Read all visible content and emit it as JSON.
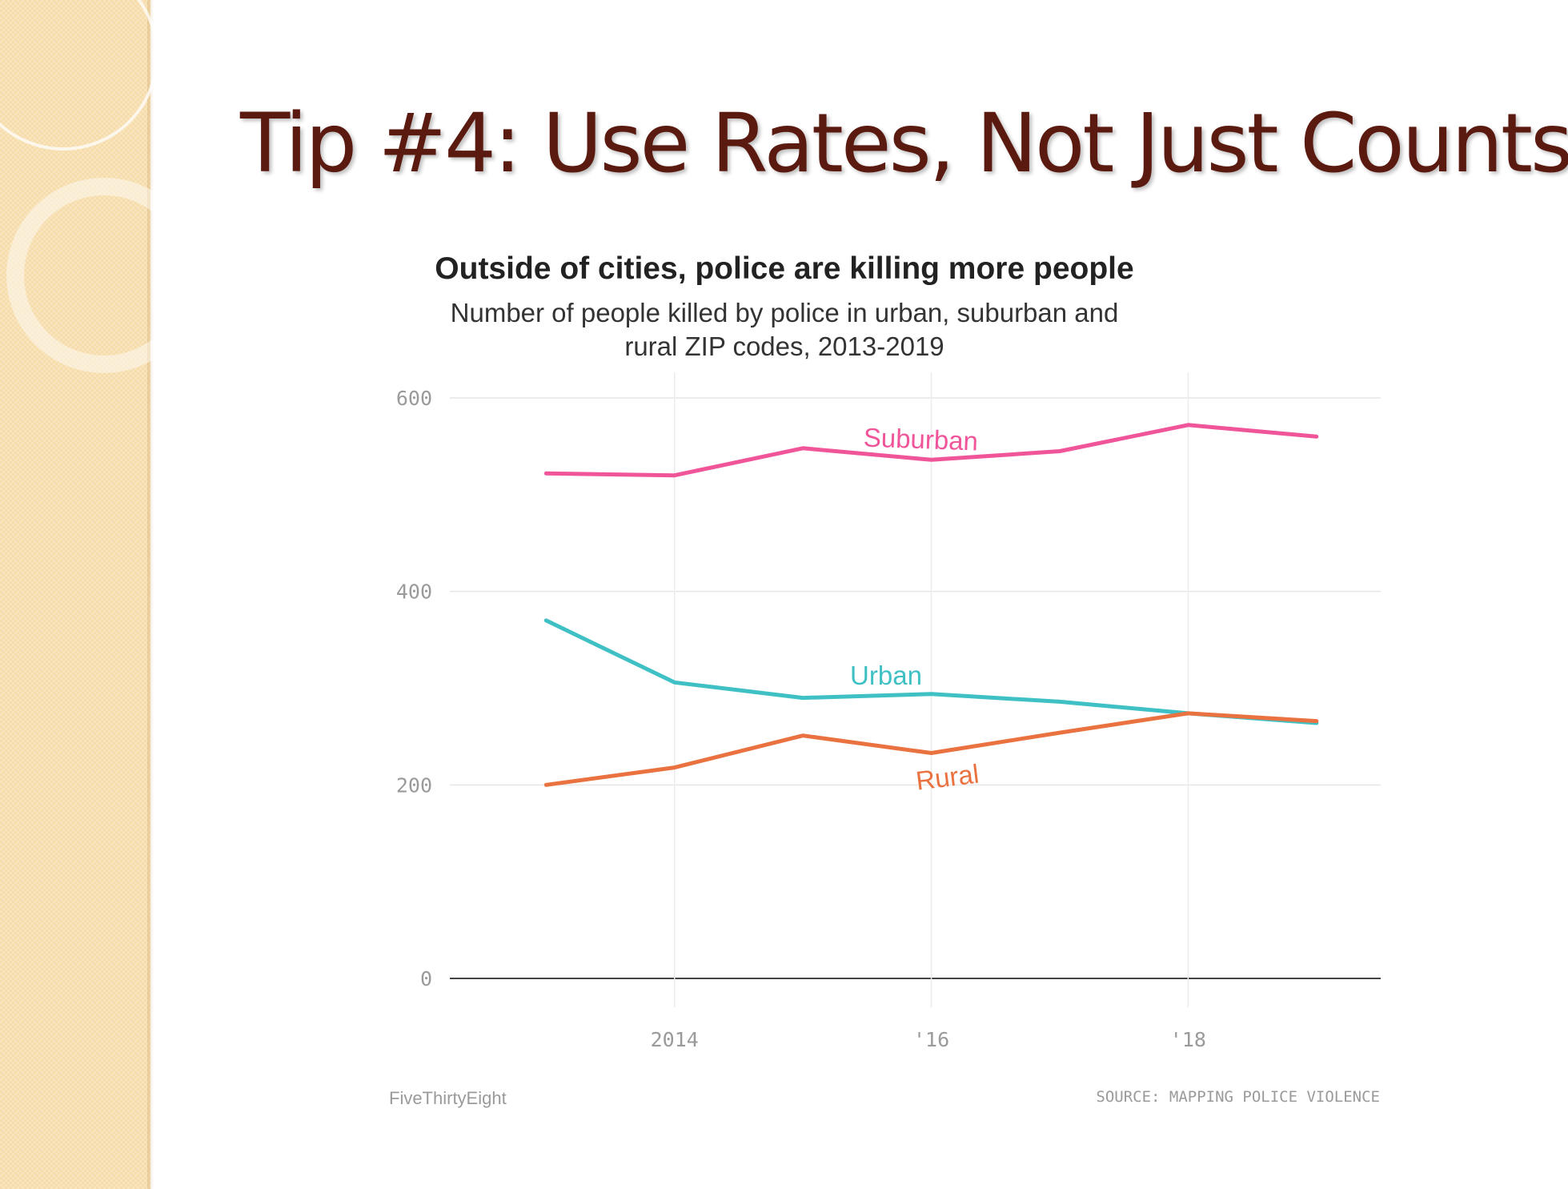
{
  "slide": {
    "title": "Tip #4:  Use Rates, Not Just Counts"
  },
  "chart_data": {
    "type": "line",
    "title": "Outside of cities, police are killing more people",
    "subtitle": "Number of people killed by police in urban, suburban and rural ZIP codes, 2013-2019",
    "x": [
      2013,
      2014,
      2015,
      2016,
      2017,
      2018,
      2019
    ],
    "xlim": [
      2012.25,
      2019.5
    ],
    "x_ticks": [
      2014,
      2016,
      2018
    ],
    "x_tick_labels": [
      "2014",
      "'16",
      "'18"
    ],
    "ylim": [
      0,
      600
    ],
    "y_ticks": [
      0,
      200,
      400,
      600
    ],
    "y_tick_labels": [
      "0",
      "200",
      "400",
      "600"
    ],
    "grid": true,
    "legend": "inline labels",
    "series": [
      {
        "name": "Suburban",
        "color": "#f0559a",
        "values": [
          522,
          520,
          548,
          536,
          545,
          572,
          560
        ]
      },
      {
        "name": "Urban",
        "color": "#3ec0c4",
        "values": [
          370,
          306,
          290,
          294,
          286,
          274,
          264
        ]
      },
      {
        "name": "Rural",
        "color": "#ea7240",
        "values": [
          200,
          218,
          251,
          233,
          254,
          274,
          266
        ]
      }
    ],
    "source": "SOURCE: MAPPING POLICE VIOLENCE",
    "credit": "FiveThirtyEight"
  }
}
